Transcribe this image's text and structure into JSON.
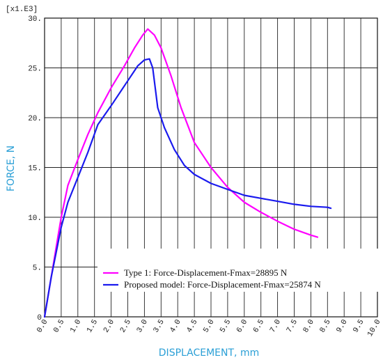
{
  "chart_data": {
    "type": "line",
    "xlabel": "DISPLACEMENT, mm",
    "ylabel": "FORCE, N",
    "y_scale_note": "[x1.E3]",
    "xlim": [
      0,
      10
    ],
    "ylim": [
      0,
      30
    ],
    "grid": true,
    "legend_position": "bottom-left",
    "x_ticks": [
      "0.0",
      "0.5",
      "1.0",
      "1.5",
      "2.0",
      "2.5",
      "3.0",
      "3.5",
      "4.0",
      "4.5",
      "5.0",
      "5.5",
      "6.0",
      "6.5",
      "7.0",
      "7.5",
      "8.0",
      "8.5",
      "9.0",
      "9.5",
      "10.0"
    ],
    "y_ticks": [
      "0",
      "5.",
      "10.",
      "15.",
      "20.",
      "25.",
      "30."
    ],
    "series": [
      {
        "name": "Type 1: Force-Displacement-Fmax=28895 N",
        "color": "#ff00ff",
        "x": [
          0,
          0.2,
          0.4,
          0.5,
          0.7,
          1.0,
          1.3,
          1.6,
          2.0,
          2.4,
          2.7,
          2.95,
          3.1,
          3.3,
          3.5,
          3.8,
          4.1,
          4.5,
          5.0,
          5.5,
          6.0,
          6.5,
          7.0,
          7.5,
          8.0,
          8.2
        ],
        "y": [
          0,
          4,
          8,
          10,
          13.2,
          15.8,
          18.3,
          20.5,
          23.0,
          25.2,
          27.0,
          28.3,
          28.9,
          28.3,
          27.0,
          24.2,
          21.0,
          17.5,
          15.0,
          13.0,
          11.5,
          10.5,
          9.6,
          8.8,
          8.2,
          8.0
        ]
      },
      {
        "name": "Proposed model: Force-Displacement-Fmax=25874 N",
        "color": "#1a1aee",
        "x": [
          0,
          0.2,
          0.5,
          0.7,
          1.0,
          1.3,
          1.6,
          2.0,
          2.4,
          2.8,
          3.0,
          3.15,
          3.25,
          3.4,
          3.6,
          3.9,
          4.2,
          4.5,
          5.0,
          5.5,
          6.0,
          6.5,
          7.0,
          7.5,
          8.0,
          8.5,
          8.6
        ],
        "y": [
          0,
          4,
          9,
          11.5,
          14,
          16.5,
          19.3,
          21.2,
          23.2,
          25.2,
          25.8,
          25.9,
          25.0,
          21.0,
          19.0,
          16.8,
          15.2,
          14.3,
          13.4,
          12.8,
          12.2,
          11.9,
          11.6,
          11.3,
          11.1,
          11.0,
          10.9
        ]
      }
    ]
  }
}
